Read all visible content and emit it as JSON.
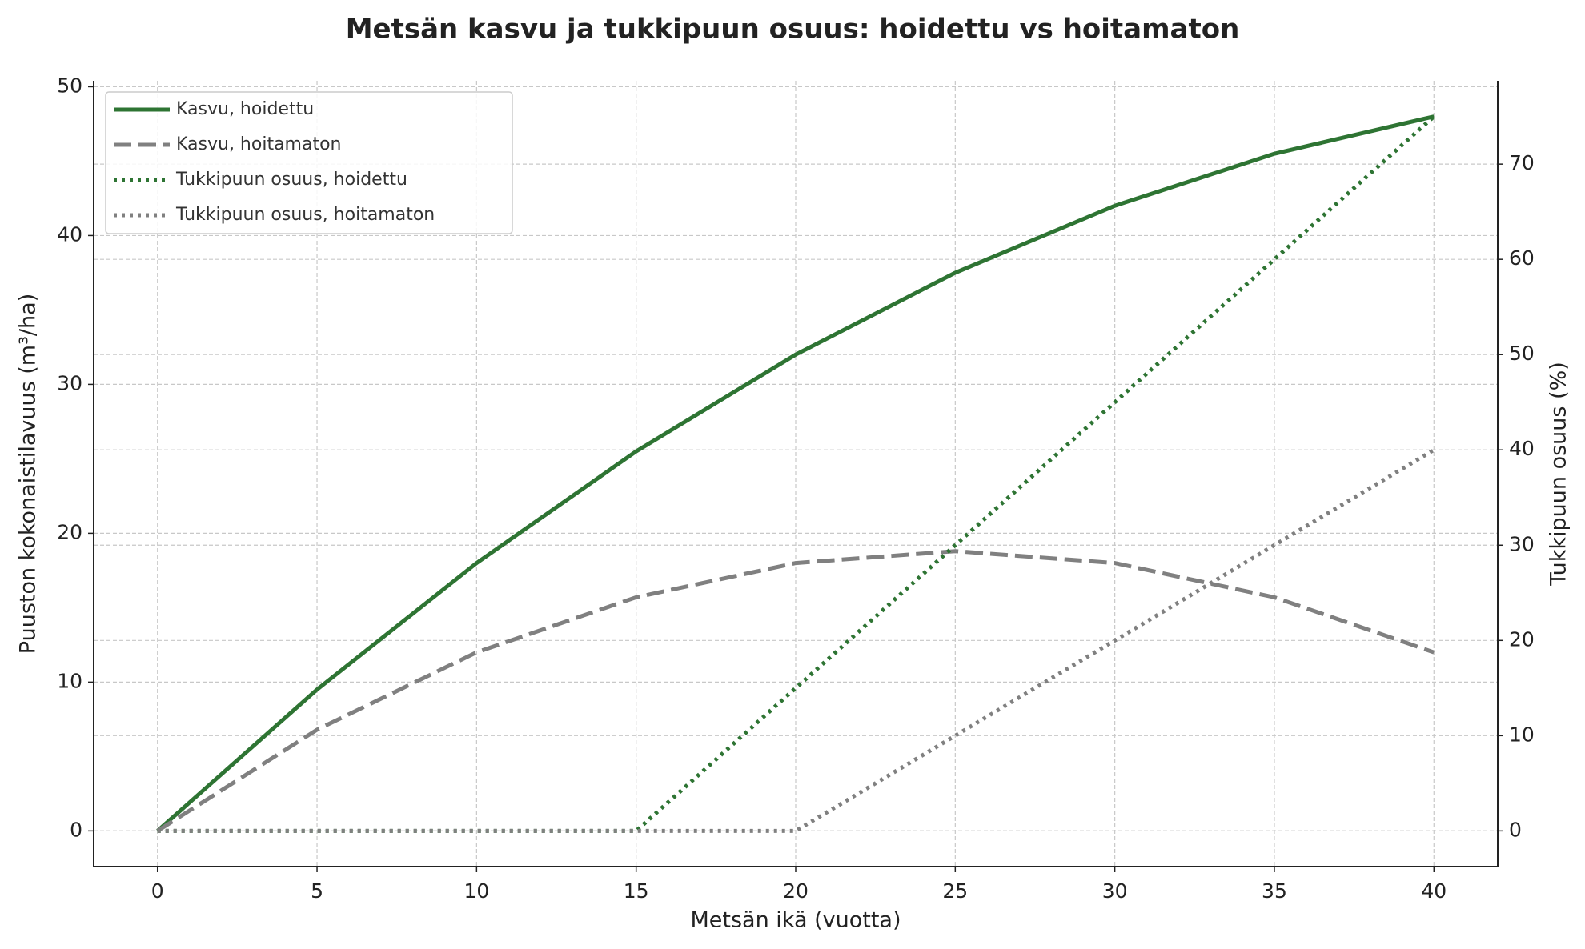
{
  "chart_data": {
    "type": "line",
    "title": "Metsän kasvu ja tukkipuun osuus: hoidettu vs hoitamaton",
    "x_label": "Metsän ikä (vuotta)",
    "y_label": "Puuston kokonaistilavuus (m³/ha)",
    "y2_label": "Tukkipuun osuus (%)",
    "x": [
      0,
      5,
      10,
      15,
      20,
      25,
      30,
      35,
      40
    ],
    "series": [
      {
        "name": "Kasvu, hoidettu",
        "color": "#2e7433",
        "linestyle": "solid",
        "axis": "y",
        "values": [
          0,
          9.5,
          18,
          25.5,
          32,
          37.5,
          42,
          45.5,
          48
        ]
      },
      {
        "name": "Kasvu, hoitamaton",
        "color": "#808080",
        "linestyle": "dashed",
        "axis": "y",
        "values": [
          0,
          6.8,
          12,
          15.7,
          18,
          18.8,
          18,
          15.7,
          12
        ]
      },
      {
        "name": "Tukkipuun osuus, hoidettu",
        "color": "#2e7433",
        "linestyle": "dotted",
        "axis": "y2",
        "values": [
          0,
          0,
          0,
          0,
          15,
          30,
          45,
          60,
          75
        ]
      },
      {
        "name": "Tukkipuun osuus, hoitamaton",
        "color": "#808080",
        "linestyle": "dotted",
        "axis": "y2",
        "values": [
          0,
          0,
          0,
          0,
          0,
          10,
          20,
          30,
          40
        ]
      }
    ],
    "xlim": [
      -2,
      42
    ],
    "xticks": [
      0,
      5,
      10,
      15,
      20,
      25,
      30,
      35,
      40
    ],
    "ylim": [
      -2.4,
      50.4
    ],
    "yticks": [
      0,
      10,
      20,
      30,
      40,
      50
    ],
    "y2lim": [
      -3.75,
      78.75
    ],
    "y2ticks": [
      0,
      10,
      20,
      30,
      40,
      50,
      60,
      70
    ],
    "grid": true,
    "legend": "upper left"
  }
}
